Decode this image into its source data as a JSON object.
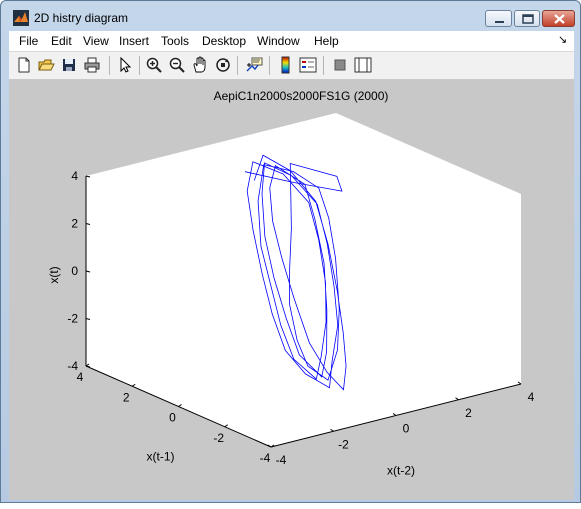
{
  "window": {
    "title": "2D histry diagram"
  },
  "menu": {
    "items": [
      "File",
      "Edit",
      "View",
      "Insert",
      "Tools",
      "Desktop",
      "Window",
      "Help"
    ],
    "arrow": "↘"
  },
  "toolbar": {
    "icons": [
      "new-figure-icon",
      "open-file-icon",
      "save-icon",
      "print-icon",
      "edit-plot-arrow-icon",
      "zoom-in-icon",
      "zoom-out-icon",
      "pan-hand-icon",
      "rotate-3d-icon",
      "data-cursor-icon",
      "colorbar-icon",
      "legend-icon",
      "hide-plot-tools-icon",
      "show-plot-tools-icon"
    ]
  },
  "colors": {
    "line": "#0000ff",
    "figure_bg": "#c8c8c8",
    "axes_bg": "#ffffff"
  },
  "chart_data": {
    "type": "line",
    "projection": "3d",
    "title": "AepiC1n2000s2000FS1G (2000)",
    "xlabel": "x(t-1)",
    "ylabel": "x(t-2)",
    "zlabel": "x(t)",
    "xlim": [
      -4,
      4
    ],
    "ylim": [
      -4,
      4
    ],
    "zlim": [
      -4,
      4
    ],
    "x_ticks": [
      "4",
      "2",
      "0",
      "-2",
      "-4"
    ],
    "y_ticks": [
      "-4",
      "-2",
      "0",
      "2",
      "4"
    ],
    "z_ticks": [
      "4",
      "2",
      "0",
      "-2",
      "-4"
    ],
    "grid": false,
    "series": [
      {
        "points": [
          [
            2.8,
            0.2,
            3.3
          ],
          [
            1.5,
            0.8,
            3.2
          ],
          [
            0.5,
            1.6,
            3.0
          ],
          [
            1.8,
            2.4,
            2.8
          ],
          [
            2.6,
            1.5,
            3.3
          ],
          [
            1.2,
            0.5,
            1.5
          ],
          [
            0.6,
            0.0,
            0.2
          ],
          [
            0.2,
            -0.3,
            -1.0
          ],
          [
            -0.4,
            -0.5,
            -2.2
          ],
          [
            -1.0,
            -0.6,
            -3.0
          ],
          [
            -1.6,
            -0.4,
            -3.4
          ],
          [
            -1.2,
            0.2,
            -2.5
          ],
          [
            -0.6,
            0.7,
            -1.2
          ],
          [
            0.1,
            1.1,
            0.5
          ],
          [
            0.8,
            1.4,
            1.8
          ],
          [
            1.5,
            1.6,
            2.7
          ],
          [
            2.2,
            1.3,
            3.2
          ],
          [
            2.8,
            0.8,
            3.4
          ],
          [
            2.1,
            0.1,
            2.4
          ],
          [
            1.3,
            -0.4,
            1.0
          ],
          [
            0.6,
            -0.6,
            -0.3
          ],
          [
            -0.1,
            -0.8,
            -1.6
          ],
          [
            -0.8,
            -0.9,
            -2.7
          ],
          [
            -1.5,
            -0.7,
            -3.3
          ],
          [
            -0.9,
            -0.1,
            -2.8
          ],
          [
            -0.3,
            0.5,
            -1.8
          ],
          [
            0.4,
            1.0,
            -0.6
          ],
          [
            1.1,
            1.3,
            0.8
          ],
          [
            1.8,
            1.5,
            2.0
          ],
          [
            2.5,
            1.2,
            3.0
          ],
          [
            3.0,
            0.6,
            3.5
          ],
          [
            2.3,
            -0.1,
            2.8
          ],
          [
            1.5,
            -0.5,
            1.6
          ],
          [
            0.7,
            -0.8,
            0.2
          ],
          [
            0.0,
            -1.0,
            -1.1
          ],
          [
            -0.7,
            -1.1,
            -2.3
          ],
          [
            -1.3,
            -0.9,
            -3.1
          ],
          [
            -1.8,
            -0.5,
            -3.6
          ],
          [
            -1.1,
            0.1,
            -3.0
          ],
          [
            -0.4,
            0.8,
            -2.0
          ],
          [
            0.3,
            1.2,
            -0.8
          ],
          [
            1.0,
            1.5,
            0.6
          ],
          [
            1.7,
            1.7,
            1.9
          ],
          [
            2.4,
            1.4,
            2.9
          ],
          [
            2.9,
            0.9,
            3.4
          ],
          [
            2.2,
            0.3,
            2.6
          ],
          [
            1.4,
            -0.2,
            1.3
          ],
          [
            0.6,
            -0.5,
            0.0
          ],
          [
            -0.2,
            -0.7,
            -1.3
          ],
          [
            -0.9,
            -0.8,
            -2.5
          ],
          [
            -1.6,
            -0.6,
            -3.2
          ],
          [
            -1.0,
            0.0,
            -2.6
          ],
          [
            -0.2,
            0.6,
            -1.4
          ],
          [
            0.6,
            1.1,
            0.1
          ],
          [
            1.4,
            1.4,
            1.5
          ],
          [
            2.1,
            1.6,
            2.6
          ],
          [
            2.7,
            1.1,
            3.3
          ],
          [
            2.0,
            0.4,
            2.9
          ],
          [
            1.2,
            -0.1,
            2.0
          ],
          [
            0.4,
            -0.4,
            0.9
          ],
          [
            -0.4,
            -0.6,
            -0.4
          ],
          [
            -1.2,
            -0.7,
            -1.9
          ],
          [
            -1.7,
            -0.5,
            -3.0
          ],
          [
            -2.0,
            -0.2,
            -3.7
          ],
          [
            -1.3,
            0.4,
            -3.2
          ],
          [
            -0.5,
            0.9,
            -2.3
          ],
          [
            0.3,
            1.3,
            -1.0
          ],
          [
            1.1,
            1.6,
            0.5
          ],
          [
            1.9,
            1.8,
            1.9
          ],
          [
            2.6,
            1.5,
            3.0
          ],
          [
            3.1,
            1.0,
            3.6
          ],
          [
            2.4,
            0.2,
            3.1
          ]
        ]
      }
    ]
  }
}
